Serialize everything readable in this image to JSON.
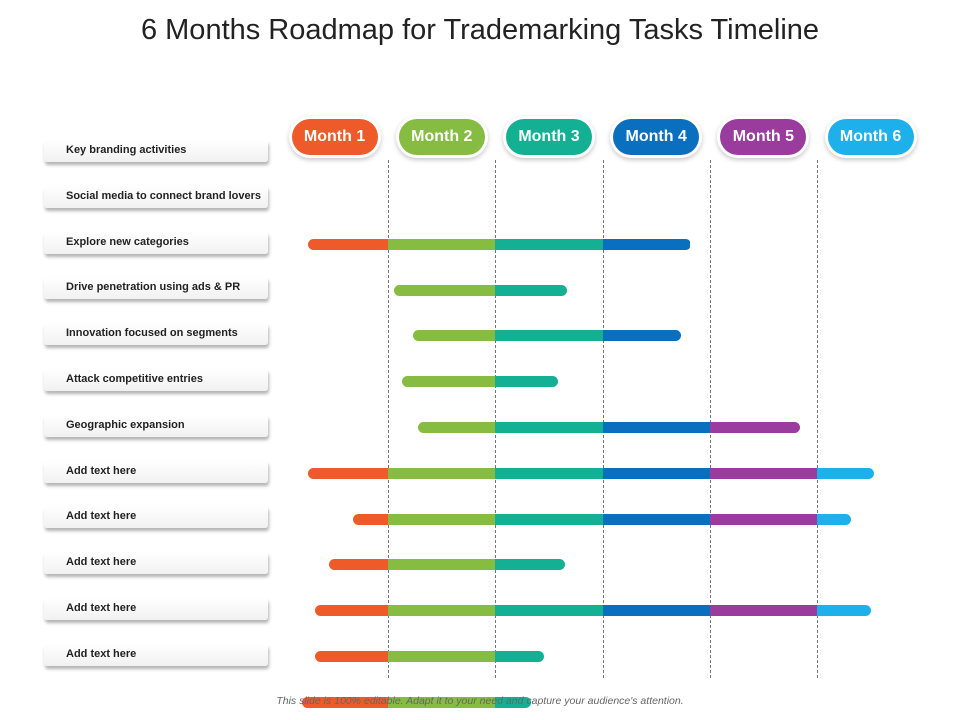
{
  "title": "6 Months Roadmap for Trademarking Tasks Timeline",
  "footer": "This slide is 100% editable. Adapt it to your need and capture your audience's attention.",
  "months": [
    {
      "label": "Month 1",
      "color": "#ee5a2a"
    },
    {
      "label": "Month 2",
      "color": "#86bc42"
    },
    {
      "label": "Month 3",
      "color": "#14b094"
    },
    {
      "label": "Month 4",
      "color": "#0a6fbf"
    },
    {
      "label": "Month 5",
      "color": "#9a3b9e"
    },
    {
      "label": "Month 6",
      "color": "#1db0ea"
    }
  ],
  "tasks": [
    {
      "label": "Key branding activities",
      "start": null,
      "end": null
    },
    {
      "label": "Social media to connect brand lovers",
      "start": 0.25,
      "end": 3.82
    },
    {
      "label": "Explore new categories",
      "start": 1.05,
      "end": 2.67
    },
    {
      "label": "Drive penetration using ads & PR",
      "start": 1.23,
      "end": 3.73
    },
    {
      "label": "Innovation focused on segments",
      "start": 1.13,
      "end": 2.58
    },
    {
      "label": "Attack competitive entries",
      "start": 1.28,
      "end": 4.84
    },
    {
      "label": "Geographic expansion",
      "start": 0.25,
      "end": 5.53
    },
    {
      "label": "Add text here",
      "start": 0.67,
      "end": 5.32
    },
    {
      "label": "Add text here",
      "start": 0.45,
      "end": 2.65
    },
    {
      "label": "Add text here",
      "start": 0.32,
      "end": 5.5
    },
    {
      "label": "Add text here",
      "start": 0.32,
      "end": 2.45
    },
    {
      "label": "Add text here",
      "start": 0.2,
      "end": 2.33
    }
  ]
}
